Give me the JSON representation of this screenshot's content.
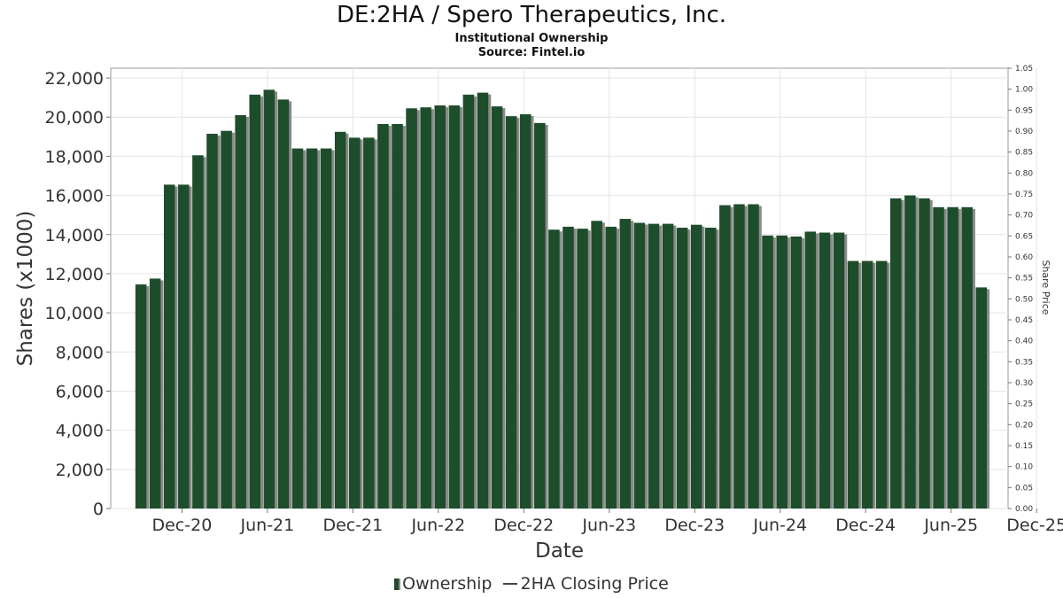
{
  "header": {
    "title": "DE:2HA / Spero Therapeutics, Inc.",
    "subtitle": "Institutional Ownership",
    "source": "Source: Fintel.io"
  },
  "legend": {
    "ownership_label": "Ownership",
    "price_label": "2HA Closing Price"
  },
  "chart_data": {
    "type": "bar",
    "title": "DE:2HA / Spero Therapeutics, Inc.",
    "xlabel": "Date",
    "ylabel": "Shares (x1000)",
    "y2label": "Share Price",
    "ylim": [
      0,
      22500
    ],
    "y2lim": [
      0,
      1.05
    ],
    "grid": true,
    "legend_position": "bottom",
    "colors": {
      "bar": "#1e4d2b",
      "bar_shadow": "#8a8a8a",
      "grid": "#e4e4e4"
    },
    "x_ticks": [
      "Dec-20",
      "Jun-21",
      "Dec-21",
      "Jun-22",
      "Dec-22",
      "Jun-23",
      "Dec-23",
      "Jun-24",
      "Dec-24",
      "Jun-25",
      "Dec-25"
    ],
    "y_ticks": [
      "0",
      "2,000",
      "4,000",
      "6,000",
      "8,000",
      "10,000",
      "12,000",
      "14,000",
      "16,000",
      "18,000",
      "20,000",
      "22,000"
    ],
    "y_tick_values": [
      0,
      2000,
      4000,
      6000,
      8000,
      10000,
      12000,
      14000,
      16000,
      18000,
      20000,
      22000
    ],
    "y2_ticks": [
      "0.00",
      "0.05",
      "0.10",
      "0.15",
      "0.20",
      "0.25",
      "0.30",
      "0.35",
      "0.40",
      "0.45",
      "0.50",
      "0.55",
      "0.60",
      "0.65",
      "0.70",
      "0.75",
      "0.80",
      "0.85",
      "0.90",
      "0.95",
      "1.00",
      "1.05"
    ],
    "series": [
      {
        "name": "Ownership",
        "values": [
          11450,
          11750,
          16550,
          16550,
          18050,
          19150,
          19300,
          20100,
          21150,
          21400,
          20900,
          18400,
          18400,
          18400,
          19250,
          18950,
          18950,
          19650,
          19650,
          20450,
          20500,
          20600,
          20600,
          21150,
          21250,
          20550,
          20050,
          20150,
          19700,
          14250,
          14400,
          14300,
          14700,
          14400,
          14800,
          14600,
          14550,
          14550,
          14350,
          14500,
          14350,
          15500,
          15550,
          15550,
          13950,
          13950,
          13900,
          14150,
          14100,
          14100,
          12650,
          12650,
          12650,
          15850,
          16000,
          15850,
          15400,
          15400,
          15400,
          11300
        ]
      }
    ]
  }
}
